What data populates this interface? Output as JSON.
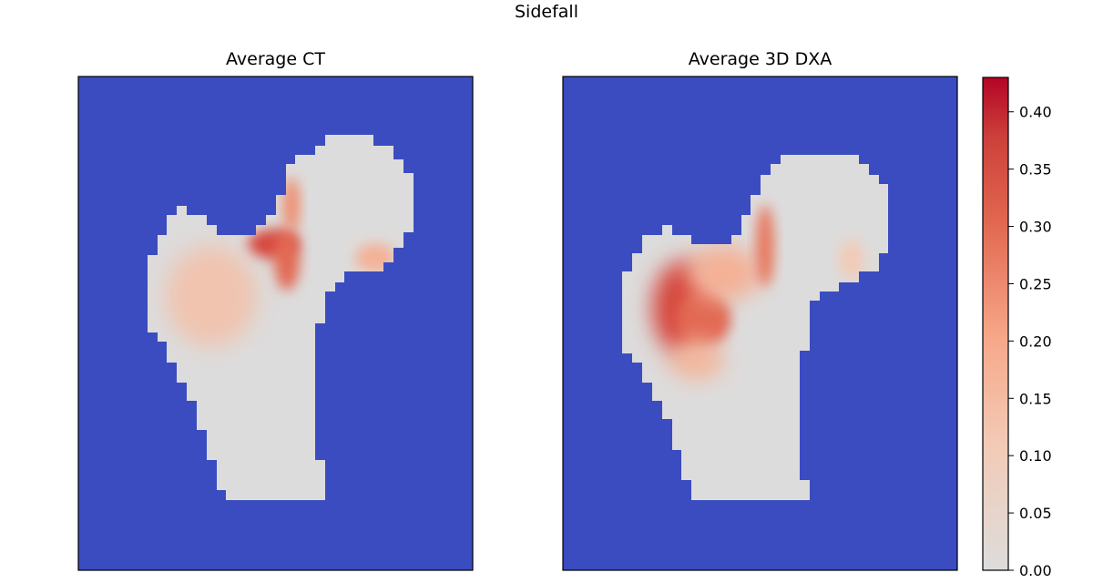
{
  "figure": {
    "title": "Sidefall"
  },
  "chart_data": [
    {
      "type": "heatmap",
      "title": "Average CT",
      "background_color": "#3b4cc0",
      "colormap": "coolwarm",
      "grid": false,
      "axes_ticks": false
    },
    {
      "type": "heatmap",
      "title": "Average 3D DXA",
      "background_color": "#3b4cc0",
      "colormap": "coolwarm",
      "grid": false,
      "axes_ticks": false
    }
  ],
  "colorbar": {
    "range": [
      0.0,
      0.43
    ],
    "ticks": [
      "0.00",
      "0.05",
      "0.10",
      "0.15",
      "0.20",
      "0.25",
      "0.30",
      "0.35",
      "0.40"
    ],
    "color_low": "#dddcdc",
    "color_high": "#b40426"
  }
}
